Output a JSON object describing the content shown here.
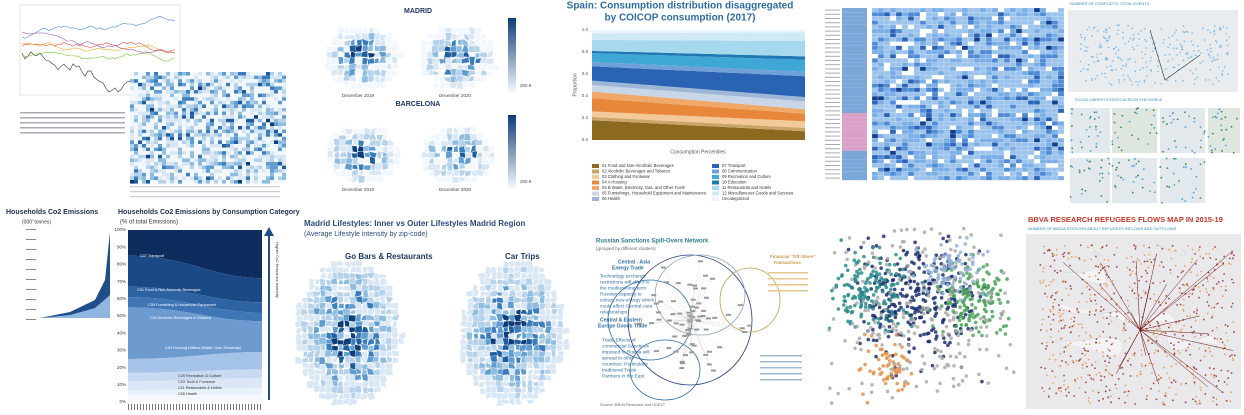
{
  "madrid_barcelona": {
    "title_1": "MADRID",
    "title_2": "BARCELONA",
    "captions": [
      "December 2019",
      "December 2020",
      "December 2019",
      "December 2020"
    ],
    "legend_labels": [
      "200 €",
      "200 €"
    ]
  },
  "spain": {
    "title_1": "Spain:  Consumption distribution disaggregated",
    "title_2": "by COICOP consumption (2017)",
    "y_label": "Proportion",
    "x_label": "Consumption Percentiles",
    "yticks": [
      "0.0",
      "0.2",
      "0.4",
      "0.6",
      "0.8",
      "1.0"
    ],
    "legend": [
      "01 Food and Non-Alcoholic Beverages",
      "02 Alcoholic Beverages and Tobacco",
      "03 Clothing and Footwear",
      "04 A Housing",
      "04 B Water, Electricity, Gas, and Other Fuels",
      "05 Furnishings, Household Equipment and Maintenance",
      "06 Health",
      "07 Transport",
      "08 Communication",
      "09 Recreation and Culture",
      "10 Education",
      "11 Restaurants and Hotels",
      "12 Miscellaneous Goods and Services",
      "Uncategorized"
    ]
  },
  "conflicts": {
    "title_1": "NUMBER OF CONFLICTS: TOTAL EVENTS",
    "title_2": "SOCIAL UNREST EVENTS ACROSS THE WORLD"
  },
  "co2": {
    "title_1": "Households Co2 Emissions",
    "subtitle_1": "(000' tonnes)",
    "title_2": "Households Co2 Emissions by Consumption  Category",
    "subtitle_2": "(% of total  Emissions)",
    "yticks": [
      "0%",
      "10%",
      "20%",
      "30%",
      "40%",
      "50%",
      "60%",
      "70%",
      "80%",
      "90%",
      "100%"
    ],
    "labels": [
      "C07 Transport",
      "C01 Food & Non Alcoholic Beverages",
      "C05 Furnishing & Household Equipment",
      "C02 Alcoholic Beverages & Tobacco",
      "C04 Housing Utilities (Water, Gas, Electricity)",
      "C09 Recreation & Culture",
      "C03 Textil & Footwear",
      "C11 Restaurants & Hotels",
      "C06 Health"
    ],
    "arrow_label": "Higher Co2 Emissions Intensity"
  },
  "lifestyles": {
    "title": "Madrid Lifestyles: Inner vs Outer Lifestyles Madrid Region",
    "subtitle": "(Average Lifestyle intensity by zip-code)",
    "map_1": "Go Bars & Restaurants",
    "map_2": "Car Trips"
  },
  "russia": {
    "title": "Russian Sanctions Spill-Overs Network",
    "subtitle": "(grouped by different clusters)",
    "cluster_1": "Central - Asia",
    "cluster_1b": "Energy Trade",
    "text_1": [
      "Technology exchange",
      "restrictions will affect to",
      "the medium/long term",
      "Russian capacity to",
      "extract new energy which",
      "could affect Central-Asia",
      "relationships"
    ],
    "cluster_2": "Central & Eastern",
    "cluster_2b": "Europe Goods Trade",
    "text_2": [
      "Trade Effects of",
      "commercial Sanctions",
      "imposed to Russia will",
      "spread to other",
      "countries: Particularly",
      "traditional Trade",
      "Partners in the East"
    ],
    "cluster_3": "Financial \"Off-Shore\"",
    "cluster_3b": "Transactions",
    "source": "Source: BBVA Research and GDELT"
  },
  "refugees": {
    "title": "BBVA RESEARCH REFUGEES FLOWS MAP IN 2015-19",
    "subtitle": "NUMBER OF MEDIA STATIONS ABOUT REFUGEES INFLOWS AND OUTFLOWS"
  }
}
